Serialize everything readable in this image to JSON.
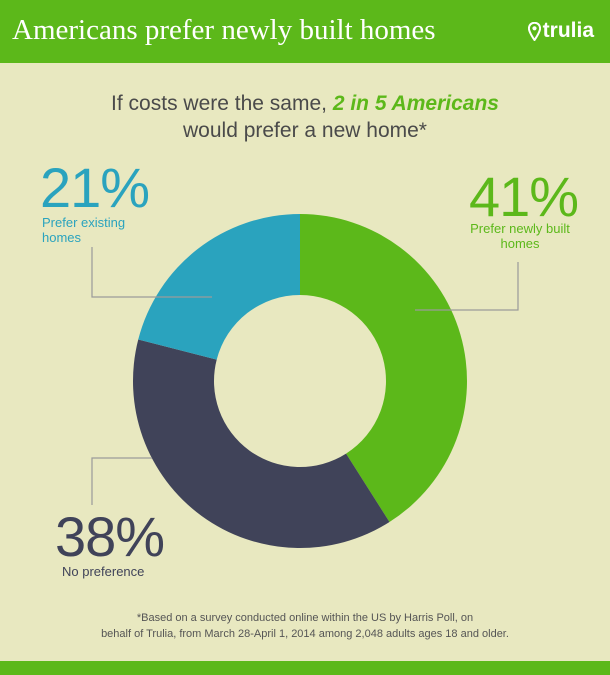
{
  "header": {
    "title": "Americans prefer newly built homes",
    "brand": "trulia",
    "brand_icon": "map-pin-icon"
  },
  "subtitle": {
    "pre": "If costs were the same, ",
    "highlight": "2 in 5 Americans",
    "post": "would prefer a new home*"
  },
  "colors": {
    "header": "#5cb81a",
    "background": "#e8e8c0",
    "new": "#5cb81a",
    "existing": "#2aa3be",
    "none": "#404359"
  },
  "chart_data": {
    "type": "pie",
    "variant": "donut",
    "slices": [
      {
        "percent_label": "41%",
        "label": "Prefer newly built homes",
        "value": 41,
        "color": "#5cb81a"
      },
      {
        "percent_label": "38%",
        "label": "No preference",
        "value": 38,
        "color": "#404359"
      },
      {
        "percent_label": "21%",
        "label": "Prefer existing homes",
        "value": 21,
        "color": "#2aa3be"
      }
    ]
  },
  "labels": {
    "new": {
      "percent": "41%",
      "line1": "Prefer newly built",
      "line2": "homes"
    },
    "existing": {
      "percent": "21%",
      "line1": "Prefer existing",
      "line2": "homes"
    },
    "none": {
      "percent": "38%",
      "line1": "No preference"
    }
  },
  "footnote": {
    "line1": "*Based on a survey conducted online within the US by Harris Poll, on",
    "line2": "behalf of Trulia, from March 28-April 1, 2014 among 2,048 adults ages 18 and older."
  }
}
